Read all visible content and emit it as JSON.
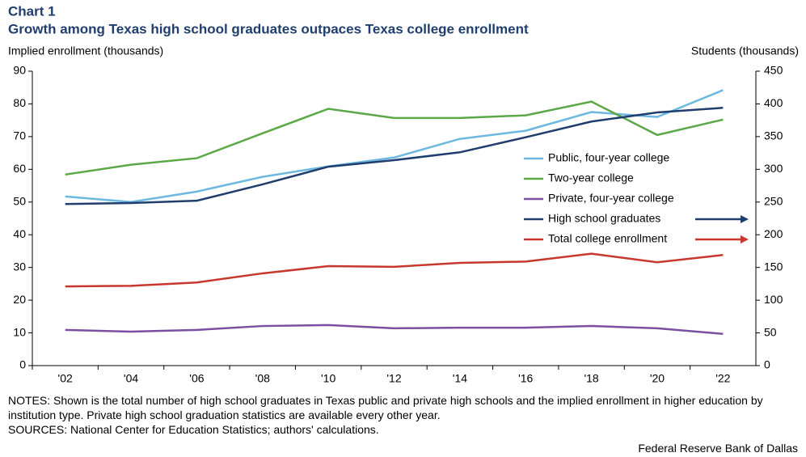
{
  "chart_data": {
    "type": "line",
    "title": "Chart 1",
    "subtitle": "Growth among Texas high school graduates outpaces Texas college enrollment",
    "y_label": "Implied enrollment  (thousands)",
    "y2_label": "Students  (thousands)",
    "categories": [
      "'02",
      "'04",
      "'06",
      "'08",
      "'10",
      "'12",
      "'14",
      "'16",
      "'18",
      "'20",
      "'22"
    ],
    "ylim": [
      0,
      90
    ],
    "yticks": [
      0,
      10,
      20,
      30,
      40,
      50,
      60,
      70,
      80,
      90
    ],
    "y2lim": [
      0,
      450
    ],
    "y2ticks": [
      0,
      50,
      100,
      150,
      200,
      250,
      300,
      350,
      400,
      450
    ],
    "legend": "center-right",
    "series": [
      {
        "name": "Public, four-year college",
        "color": "#6cb8e0",
        "values": [
          51.7,
          50,
          53.2,
          57.7,
          60.9,
          63.6,
          69.3,
          71.8,
          77.5,
          76,
          84.2
        ]
      },
      {
        "name": "Two-year college",
        "color": "#5aa846",
        "values": [
          58.4,
          61.4,
          63.4,
          71,
          78.5,
          75.7,
          75.7,
          76.5,
          80.7,
          70.5,
          75.2
        ]
      },
      {
        "name": "Private, four-year college",
        "color": "#7b4fa0",
        "values": [
          10.9,
          10.4,
          10.9,
          12.1,
          12.4,
          11.4,
          11.6,
          11.6,
          12.1,
          11.4,
          9.7
        ]
      },
      {
        "name": "High school graduates",
        "color": "#1f3e6e",
        "axis": "y2",
        "values": [
          247,
          248.5,
          252,
          277,
          304,
          314,
          326,
          349,
          373,
          387,
          394
        ]
      },
      {
        "name": "Total college enrollment",
        "color": "#c8372d",
        "axis": "y2",
        "values": [
          121,
          122,
          127,
          141,
          152,
          151,
          157,
          159,
          171,
          158,
          169
        ]
      }
    ],
    "notes": "NOTES: Shown is the total number of high school graduates in Texas public and private high schools and the implied enrollment in higher education by institution type. Private high school graduation statistics are available every other year.",
    "sources": "SOURCES: National Center for Education Statistics; authors' calculations.",
    "credit": "Federal Reserve Bank of Dallas"
  }
}
